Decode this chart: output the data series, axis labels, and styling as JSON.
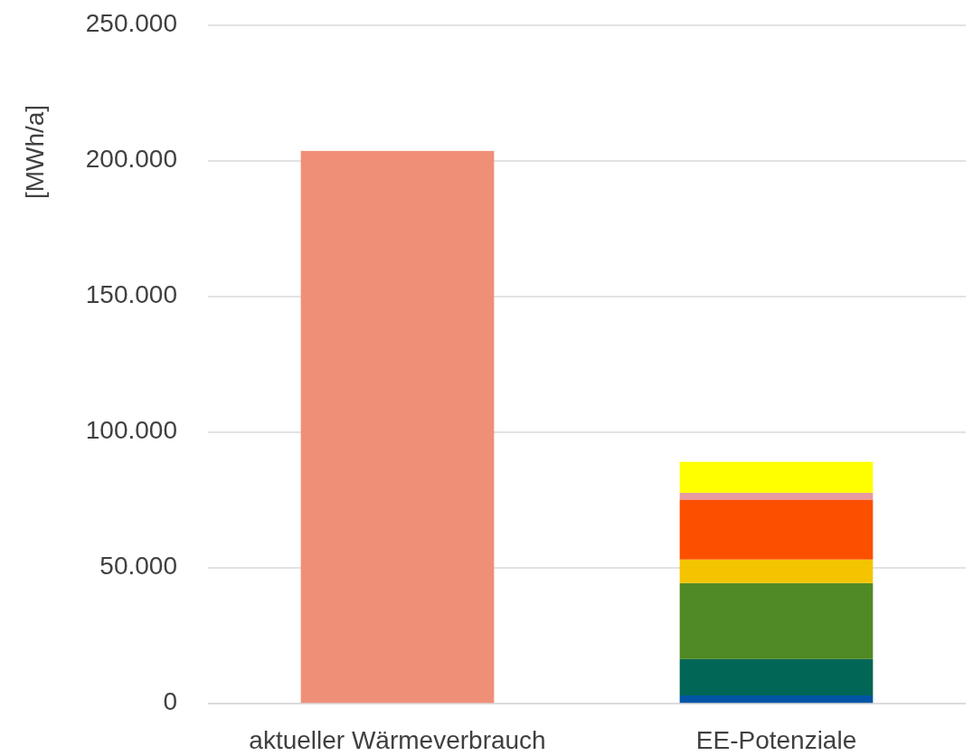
{
  "chart_data": {
    "type": "bar",
    "ylabel": "[MWh/a]",
    "categories": [
      "aktueller Wärmeverbrauch",
      "EE-Potenziale"
    ],
    "stacked": true,
    "grid": "y",
    "ylim": [
      0,
      250000
    ],
    "yticks": [
      {
        "value": 0,
        "label": "0"
      },
      {
        "value": 50000,
        "label": "50.000"
      },
      {
        "value": 100000,
        "label": "100.000"
      },
      {
        "value": 150000,
        "label": "150.000"
      },
      {
        "value": 200000,
        "label": "200.000"
      },
      {
        "value": 250000,
        "label": "250.000"
      }
    ],
    "series": [
      {
        "color": "#f08f78",
        "values": [
          203700,
          null
        ]
      },
      {
        "color": "#0055a5",
        "values": [
          null,
          3000
        ]
      },
      {
        "color": "#006655",
        "values": [
          null,
          13400
        ]
      },
      {
        "color": "#508a24",
        "values": [
          null,
          28000
        ]
      },
      {
        "color": "#f5c400",
        "values": [
          null,
          8700
        ]
      },
      {
        "color": "#fc5000",
        "values": [
          null,
          22100
        ]
      },
      {
        "color": "#e79aa0",
        "values": [
          null,
          2500
        ]
      },
      {
        "color": "#ffff00",
        "values": [
          null,
          11400
        ]
      }
    ]
  }
}
